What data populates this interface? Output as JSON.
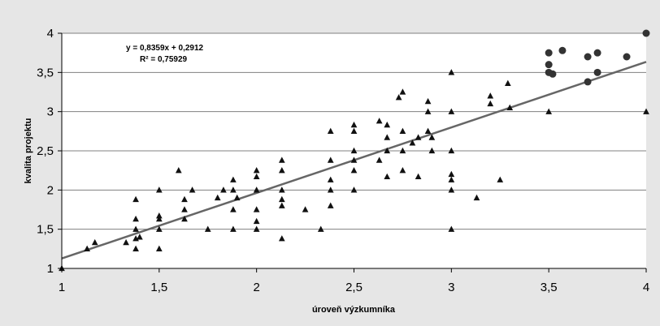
{
  "chart_data": {
    "type": "scatter",
    "xlabel": "úroveň výzkumníka",
    "ylabel": "kvalita projektu",
    "xlim": [
      1,
      4
    ],
    "ylim": [
      1,
      4
    ],
    "x_ticks": [
      1,
      1.5,
      2,
      2.5,
      3,
      3.5,
      4
    ],
    "x_tick_labels": [
      "1",
      "1,5",
      "2",
      "2,5",
      "3",
      "3,5",
      "4"
    ],
    "y_ticks": [
      1,
      1.5,
      2,
      2.5,
      3,
      3.5,
      4
    ],
    "y_tick_labels": [
      "1",
      "1,5",
      "2",
      "2,5",
      "3",
      "3,5",
      "4"
    ],
    "grid": "horizontal",
    "annotations": [
      "y = 0,8359x + 0,2912",
      "R² = 0,75929"
    ],
    "trendline": {
      "slope": 0.8359,
      "intercept": 0.2912
    },
    "colors": {
      "background": "#e6e6e6",
      "plot_background": "#ffffff",
      "markers": "#111111",
      "trendline": "#666666",
      "gridlines": "#808080"
    },
    "series": [
      {
        "marker": "triangle",
        "points": [
          [
            1.0,
            1.0
          ],
          [
            1.13,
            1.25
          ],
          [
            1.17,
            1.33
          ],
          [
            1.33,
            1.33
          ],
          [
            1.38,
            1.88
          ],
          [
            1.38,
            1.63
          ],
          [
            1.38,
            1.5
          ],
          [
            1.38,
            1.38
          ],
          [
            1.38,
            1.25
          ],
          [
            1.4,
            1.4
          ],
          [
            1.5,
            2.0
          ],
          [
            1.5,
            1.67
          ],
          [
            1.5,
            1.63
          ],
          [
            1.5,
            1.5
          ],
          [
            1.5,
            1.25
          ],
          [
            1.63,
            1.88
          ],
          [
            1.63,
            1.75
          ],
          [
            1.63,
            1.63
          ],
          [
            1.67,
            2.0
          ],
          [
            1.6,
            2.25
          ],
          [
            1.75,
            1.5
          ],
          [
            1.8,
            1.9
          ],
          [
            1.83,
            2.0
          ],
          [
            1.88,
            2.13
          ],
          [
            1.88,
            2.0
          ],
          [
            1.88,
            1.75
          ],
          [
            1.88,
            1.5
          ],
          [
            1.9,
            1.9
          ],
          [
            2.0,
            2.25
          ],
          [
            2.0,
            2.17
          ],
          [
            2.0,
            2.0
          ],
          [
            2.0,
            1.75
          ],
          [
            2.0,
            1.6
          ],
          [
            2.0,
            1.5
          ],
          [
            2.13,
            2.38
          ],
          [
            2.13,
            2.25
          ],
          [
            2.13,
            2.0
          ],
          [
            2.13,
            1.88
          ],
          [
            2.13,
            1.8
          ],
          [
            2.13,
            1.38
          ],
          [
            2.25,
            1.75
          ],
          [
            2.33,
            1.5
          ],
          [
            2.38,
            2.75
          ],
          [
            2.38,
            2.38
          ],
          [
            2.38,
            2.13
          ],
          [
            2.38,
            2.0
          ],
          [
            2.38,
            1.8
          ],
          [
            2.5,
            2.83
          ],
          [
            2.5,
            2.75
          ],
          [
            2.5,
            2.5
          ],
          [
            2.5,
            2.38
          ],
          [
            2.5,
            2.25
          ],
          [
            2.5,
            2.0
          ],
          [
            2.63,
            2.88
          ],
          [
            2.63,
            2.38
          ],
          [
            2.67,
            2.83
          ],
          [
            2.67,
            2.67
          ],
          [
            2.67,
            2.5
          ],
          [
            2.67,
            2.17
          ],
          [
            2.73,
            3.18
          ],
          [
            2.75,
            3.25
          ],
          [
            2.75,
            2.75
          ],
          [
            2.75,
            2.5
          ],
          [
            2.75,
            2.25
          ],
          [
            2.8,
            2.6
          ],
          [
            2.83,
            2.67
          ],
          [
            2.83,
            2.17
          ],
          [
            2.88,
            3.13
          ],
          [
            2.88,
            3.0
          ],
          [
            2.88,
            2.75
          ],
          [
            2.9,
            2.67
          ],
          [
            2.9,
            2.5
          ],
          [
            3.0,
            3.5
          ],
          [
            3.0,
            3.0
          ],
          [
            3.0,
            2.5
          ],
          [
            3.0,
            2.2
          ],
          [
            3.0,
            2.13
          ],
          [
            3.0,
            2.0
          ],
          [
            3.0,
            1.5
          ],
          [
            3.13,
            1.9
          ],
          [
            3.2,
            3.2
          ],
          [
            3.2,
            3.1
          ],
          [
            3.25,
            2.13
          ],
          [
            3.29,
            3.36
          ],
          [
            3.3,
            3.05
          ],
          [
            3.5,
            3.0
          ],
          [
            4.0,
            3.0
          ]
        ]
      },
      {
        "marker": "circle",
        "points": [
          [
            3.5,
            3.75
          ],
          [
            3.5,
            3.6
          ],
          [
            3.5,
            3.5
          ],
          [
            3.52,
            3.48
          ],
          [
            3.57,
            3.78
          ],
          [
            3.7,
            3.7
          ],
          [
            3.7,
            3.38
          ],
          [
            3.75,
            3.75
          ],
          [
            3.75,
            3.5
          ],
          [
            3.9,
            3.7
          ],
          [
            4.0,
            4.0
          ]
        ]
      }
    ]
  }
}
